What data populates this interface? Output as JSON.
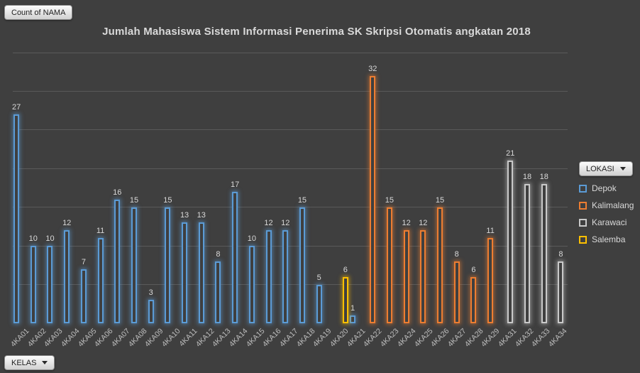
{
  "buttons": {
    "value_field": "Count of NAMA",
    "axis_field": "KELAS",
    "legend_field": "LOKASI"
  },
  "colors": {
    "background": "#3f3f3f",
    "gridline": "#5a5a5a",
    "title_text": "#d9d9d9",
    "axis_label_text": "#bfbfbf",
    "data_label_text": "#d9d9d9"
  },
  "chart_data": {
    "type": "bar",
    "title": "Jumlah Mahasiswa Sistem Informasi Penerima SK Skripsi Otomatis angkatan 2018",
    "xlabel": "",
    "ylabel": "",
    "ylim": [
      0,
      35
    ],
    "gridline_step": 5,
    "grid": true,
    "legend_position": "right",
    "data_labels": true,
    "categories": [
      "4KA01",
      "4KA02",
      "4KA03",
      "4KA04",
      "4KA05",
      "4KA06",
      "4KA07",
      "4KA08",
      "4KA09",
      "4KA10",
      "4KA11",
      "4KA12",
      "4KA13",
      "4KA14",
      "4KA15",
      "4KA16",
      "4KA17",
      "4KA18",
      "4KA19",
      "4KA20",
      "4KA21",
      "4KA22",
      "4KA23",
      "4KA24",
      "4KA25",
      "4KA26",
      "4KA27",
      "4KA28",
      "4KA29",
      "4KA31",
      "4KA32",
      "4KA33",
      "4KA34"
    ],
    "series": [
      {
        "name": "Depok",
        "color": "#5B9BD5",
        "values": [
          27,
          10,
          10,
          12,
          7,
          11,
          16,
          15,
          3,
          15,
          13,
          13,
          8,
          17,
          10,
          12,
          12,
          15,
          5,
          null,
          1,
          null,
          null,
          null,
          null,
          null,
          null,
          null,
          null,
          null,
          null,
          null,
          null
        ]
      },
      {
        "name": "Kalimalang",
        "color": "#ED7D31",
        "values": [
          null,
          null,
          null,
          null,
          null,
          null,
          null,
          null,
          null,
          null,
          null,
          null,
          null,
          null,
          null,
          null,
          null,
          null,
          null,
          null,
          null,
          32,
          15,
          12,
          12,
          15,
          8,
          6,
          11,
          null,
          null,
          null,
          null
        ]
      },
      {
        "name": "Karawaci",
        "color": "#C9C9C9",
        "values": [
          null,
          null,
          null,
          null,
          null,
          null,
          null,
          null,
          null,
          null,
          null,
          null,
          null,
          null,
          null,
          null,
          null,
          null,
          null,
          null,
          null,
          null,
          null,
          null,
          null,
          null,
          null,
          null,
          null,
          21,
          18,
          18,
          8
        ]
      },
      {
        "name": "Salemba",
        "color": "#FFC000",
        "values": [
          null,
          null,
          null,
          null,
          null,
          null,
          null,
          null,
          null,
          null,
          null,
          null,
          null,
          null,
          null,
          null,
          null,
          null,
          null,
          6,
          null,
          null,
          null,
          null,
          null,
          null,
          null,
          null,
          null,
          null,
          null,
          null,
          null
        ]
      }
    ]
  }
}
